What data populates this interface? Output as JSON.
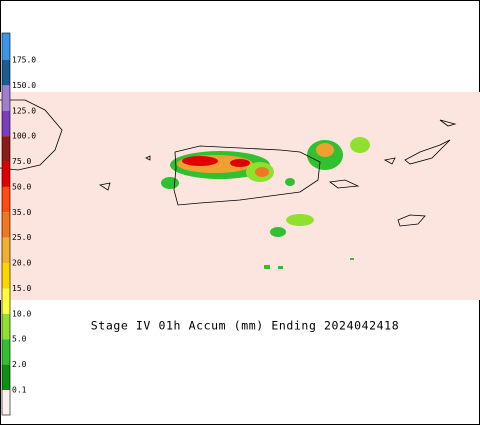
{
  "title": "Stage IV 01h Accum (mm) Ending 2024042418",
  "legend": {
    "labels": [
      "175.0",
      "150.0",
      "125.0",
      "100.0",
      "75.0",
      "50.0",
      "35.0",
      "25.0",
      "20.0",
      "15.0",
      "10.0",
      "5.0",
      "2.0",
      "0.1"
    ],
    "colors": [
      "#3c96e6",
      "#1d5a96",
      "#a07fd0",
      "#7a3fc0",
      "#8b1a1a",
      "#e00000",
      "#ff4a10",
      "#f07820",
      "#f0b030",
      "#ffd700",
      "#ffff40",
      "#90e030",
      "#30c030",
      "#109010",
      "#fff0f0"
    ]
  }
}
